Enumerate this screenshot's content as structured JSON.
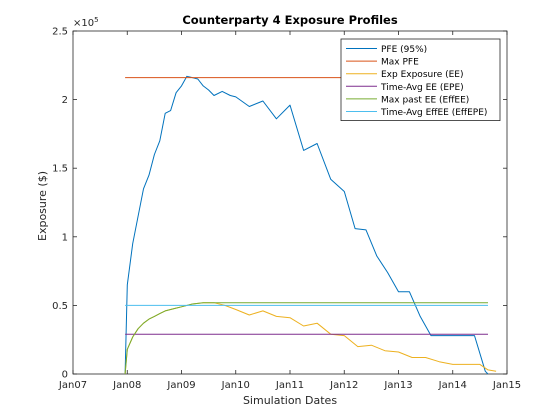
{
  "chart_data": {
    "type": "line",
    "title": "Counterparty 4 Exposure Profiles",
    "xlabel": "Simulation Dates",
    "ylabel": "Exposure ($)",
    "y_multiplier": "×10",
    "y_exponent": "5",
    "xlim": [
      2007.0,
      2015.0
    ],
    "ylim": [
      0,
      2.5
    ],
    "x_ticks": [
      {
        "label": "Jan07",
        "x": 2007
      },
      {
        "label": "Jan08",
        "x": 2008
      },
      {
        "label": "Jan09",
        "x": 2009
      },
      {
        "label": "Jan10",
        "x": 2010
      },
      {
        "label": "Jan11",
        "x": 2011
      },
      {
        "label": "Jan12",
        "x": 2012
      },
      {
        "label": "Jan13",
        "x": 2013
      },
      {
        "label": "Jan14",
        "x": 2014
      },
      {
        "label": "Jan15",
        "x": 2015
      }
    ],
    "y_ticks": [
      {
        "label": "0",
        "y": 0
      },
      {
        "label": "0.5",
        "y": 0.5
      },
      {
        "label": "1",
        "y": 1.0
      },
      {
        "label": "1.5",
        "y": 1.5
      },
      {
        "label": "2",
        "y": 2.0
      },
      {
        "label": "2.5",
        "y": 2.5
      }
    ],
    "grid": false,
    "legend_position": "top-right",
    "series": [
      {
        "name": "PFE (95%)",
        "color": "#0072BD",
        "x": [
          2007.96,
          2008.0,
          2008.1,
          2008.2,
          2008.3,
          2008.4,
          2008.5,
          2008.6,
          2008.7,
          2008.8,
          2008.9,
          2009.0,
          2009.1,
          2009.2,
          2009.3,
          2009.4,
          2009.5,
          2009.6,
          2009.75,
          2009.9,
          2010.0,
          2010.25,
          2010.5,
          2010.75,
          2011.0,
          2011.25,
          2011.5,
          2011.75,
          2012.0,
          2012.2,
          2012.4,
          2012.6,
          2012.8,
          2013.0,
          2013.2,
          2013.4,
          2013.6,
          2013.8,
          2014.0,
          2014.2,
          2014.4,
          2014.6,
          2014.65
        ],
        "values": [
          0.0,
          0.65,
          0.95,
          1.15,
          1.35,
          1.45,
          1.6,
          1.7,
          1.9,
          1.92,
          2.05,
          2.1,
          2.17,
          2.16,
          2.15,
          2.1,
          2.07,
          2.03,
          2.06,
          2.03,
          2.02,
          1.95,
          1.99,
          1.86,
          1.96,
          1.63,
          1.68,
          1.42,
          1.33,
          1.06,
          1.05,
          0.86,
          0.74,
          0.6,
          0.6,
          0.42,
          0.28,
          0.28,
          0.28,
          0.28,
          0.28,
          0.02,
          0.0
        ]
      },
      {
        "name": "Max PFE",
        "color": "#D95319",
        "x": [
          2007.96,
          2014.65
        ],
        "values": [
          2.16,
          2.16
        ]
      },
      {
        "name": "Exp Exposure (EE)",
        "color": "#EDB120",
        "x": [
          2007.96,
          2008.0,
          2008.1,
          2008.2,
          2008.3,
          2008.4,
          2008.5,
          2008.6,
          2008.7,
          2008.8,
          2008.9,
          2009.0,
          2009.2,
          2009.4,
          2009.6,
          2009.8,
          2010.0,
          2010.25,
          2010.5,
          2010.75,
          2011.0,
          2011.25,
          2011.5,
          2011.75,
          2012.0,
          2012.25,
          2012.5,
          2012.75,
          2013.0,
          2013.25,
          2013.5,
          2013.75,
          2014.0,
          2014.25,
          2014.5,
          2014.65,
          2014.8
        ],
        "values": [
          0.0,
          0.18,
          0.27,
          0.33,
          0.37,
          0.4,
          0.42,
          0.44,
          0.46,
          0.47,
          0.48,
          0.49,
          0.51,
          0.52,
          0.52,
          0.5,
          0.47,
          0.43,
          0.46,
          0.42,
          0.41,
          0.35,
          0.37,
          0.29,
          0.28,
          0.2,
          0.21,
          0.17,
          0.16,
          0.12,
          0.12,
          0.09,
          0.07,
          0.07,
          0.07,
          0.03,
          0.02
        ]
      },
      {
        "name": "Time-Avg EE (EPE)",
        "color": "#7E2F8E",
        "x": [
          2007.96,
          2014.65
        ],
        "values": [
          0.29,
          0.29
        ]
      },
      {
        "name": "Max past EE (EffEE)",
        "color": "#77AC30",
        "x": [
          2007.96,
          2008.0,
          2008.1,
          2008.2,
          2008.3,
          2008.4,
          2008.5,
          2008.6,
          2008.7,
          2008.8,
          2008.9,
          2009.0,
          2009.2,
          2009.4,
          2009.5,
          2014.65
        ],
        "values": [
          0.0,
          0.18,
          0.27,
          0.33,
          0.37,
          0.4,
          0.42,
          0.44,
          0.46,
          0.47,
          0.48,
          0.49,
          0.51,
          0.52,
          0.52,
          0.52
        ]
      },
      {
        "name": "Time-Avg EffEE (EffEPE)",
        "color": "#4DBEEE",
        "x": [
          2007.96,
          2014.65
        ],
        "values": [
          0.5,
          0.5
        ]
      }
    ]
  }
}
